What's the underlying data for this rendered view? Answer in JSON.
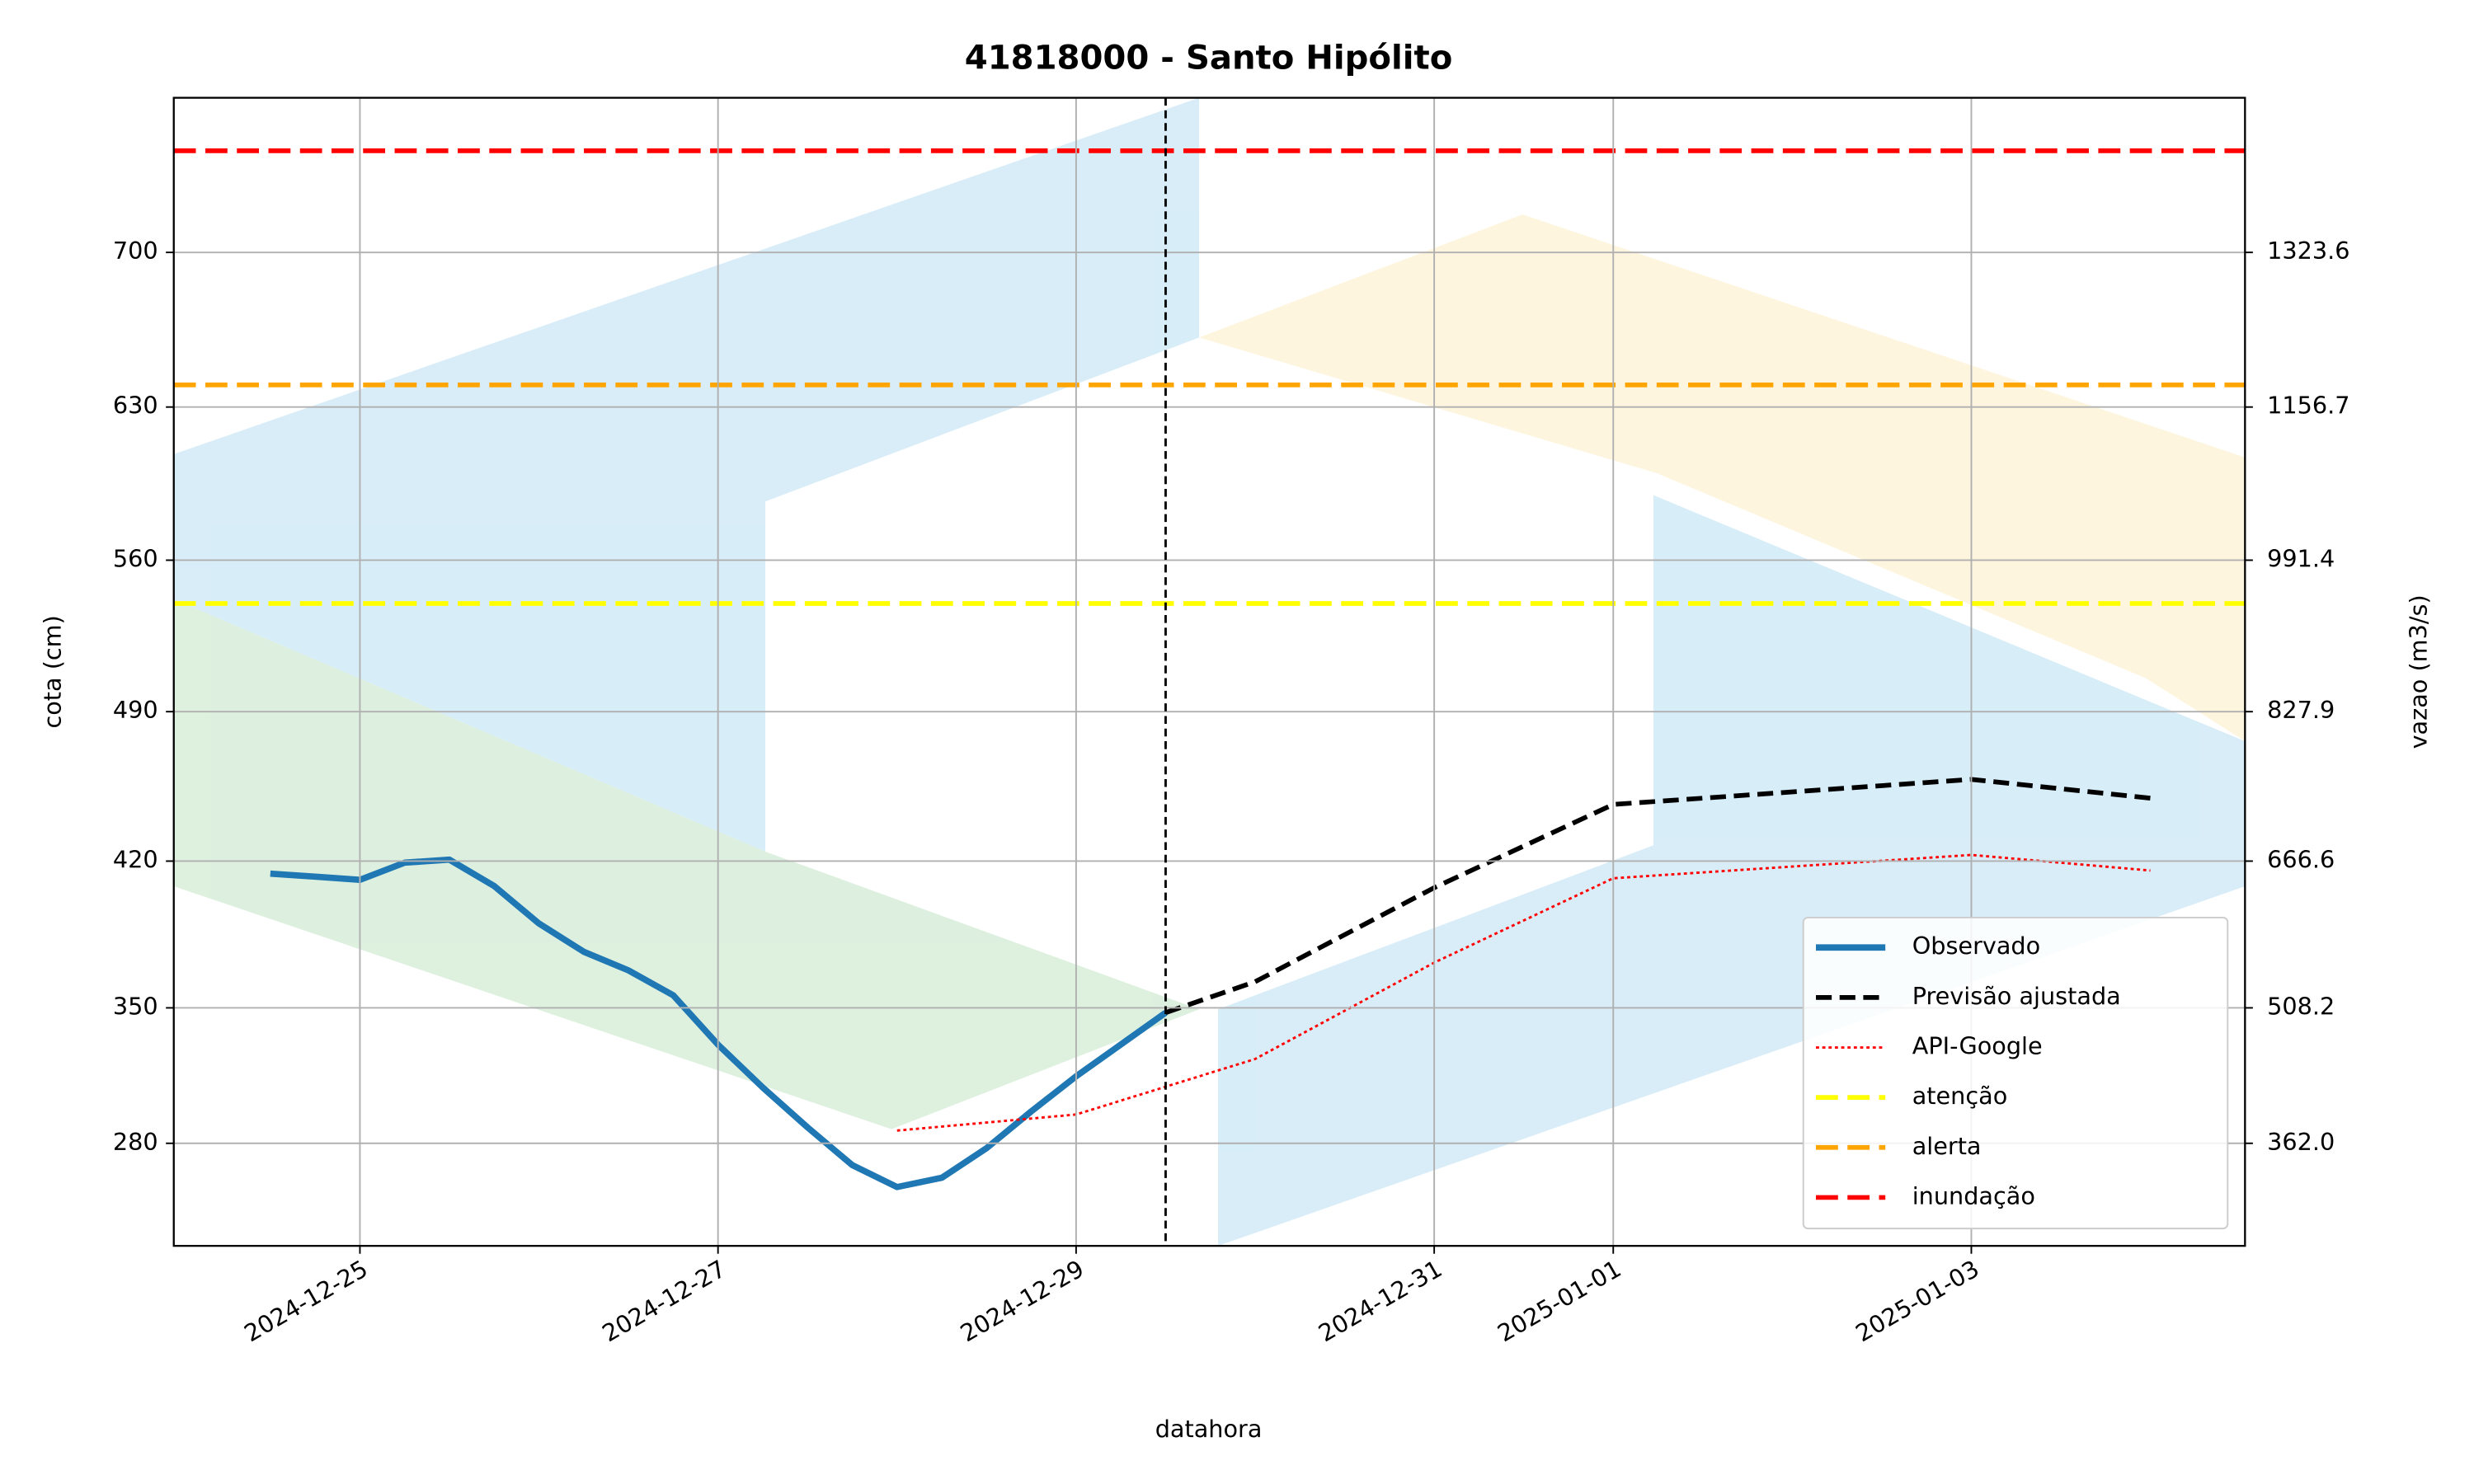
{
  "chart_data": {
    "type": "line",
    "title": "41818000 - Santo Hipólito",
    "x_label": "datahora",
    "y_label": "cota (cm)",
    "y2_label": "vazao (m3/s)",
    "xlim": [
      "2024-12-23T23:03",
      "2025-01-04T12:41"
    ],
    "xticks": [
      "2024-12-25",
      "2024-12-27",
      "2024-12-29",
      "2024-12-31",
      "2025-01-01",
      "2025-01-03"
    ],
    "ylim": [
      226,
      770
    ],
    "yticks": [
      280,
      350,
      420,
      490,
      560,
      630,
      700
    ],
    "y2lim": [
      251.3,
      1490.5
    ],
    "y2ticks": [
      {
        "value": 362,
        "label": "362.0"
      },
      {
        "value": 508.2,
        "label": "508.2"
      },
      {
        "value": 666.6,
        "label": "666.6"
      },
      {
        "value": 827.9,
        "label": "827.9"
      },
      {
        "value": 991.4,
        "label": "991.4"
      },
      {
        "value": 1156.7,
        "label": "1156.7"
      },
      {
        "value": 1323.6,
        "label": "1323.6"
      }
    ],
    "grid": true,
    "legend": "lower right",
    "now": "2024-12-29T12:00",
    "series": [
      {
        "name": "Observado",
        "color": "#1f77b4",
        "x": [
          "2024-12-24T12:00",
          "2024-12-24T18:00",
          "2024-12-25T00:00",
          "2024-12-25T06:00",
          "2024-12-25T12:00",
          "2024-12-25T18:00",
          "2024-12-26T00:00",
          "2024-12-26T06:00",
          "2024-12-26T12:00",
          "2024-12-26T18:00",
          "2024-12-27T00:00",
          "2024-12-27T06:00",
          "2024-12-27T12:00",
          "2024-12-27T18:00",
          "2024-12-28T00:00",
          "2024-12-28T06:00",
          "2024-12-28T12:00",
          "2024-12-28T18:00",
          "2024-12-29T00:00",
          "2024-12-29T06:00",
          "2024-12-29T12:00"
        ],
        "values": [
          414.0,
          412.6,
          411.1,
          419.3,
          420.7,
          408.1,
          390.2,
          376.8,
          367.9,
          356.0,
          331.0,
          308.8,
          288.2,
          268.5,
          257.0,
          261.9,
          277.5,
          296.5,
          314.6,
          331.1,
          347.5
        ]
      },
      {
        "name": "Previsão ajustada",
        "color": "#000000",
        "x": [
          "2024-12-29T12:00",
          "2024-12-30T00:00",
          "2024-12-31T00:00",
          "2025-01-01T00:00",
          "2025-01-03T00:00",
          "2025-01-04T00:00"
        ],
        "values": [
          347.5,
          362.5,
          407.3,
          446.5,
          458.3,
          449.5
        ]
      },
      {
        "name": "API-Google",
        "color": "#ff0000",
        "x": [
          "2024-12-28T00:00",
          "2024-12-29T00:00",
          "2024-12-30T00:00",
          "2024-12-31T00:00",
          "2025-01-01T00:00",
          "2025-01-03T00:00",
          "2025-01-04T00:00"
        ],
        "values": [
          286.6,
          294.9,
          323.6,
          371.6,
          411.8,
          422.9,
          415.5
        ]
      }
    ],
    "thresholds": [
      {
        "name": "atenção",
        "color": "#ffff00",
        "value": 540
      },
      {
        "name": "alerta",
        "color": "#ffa500",
        "value": 640
      },
      {
        "name": "inundação",
        "color": "#ff0000",
        "value": 746
      }
    ]
  }
}
